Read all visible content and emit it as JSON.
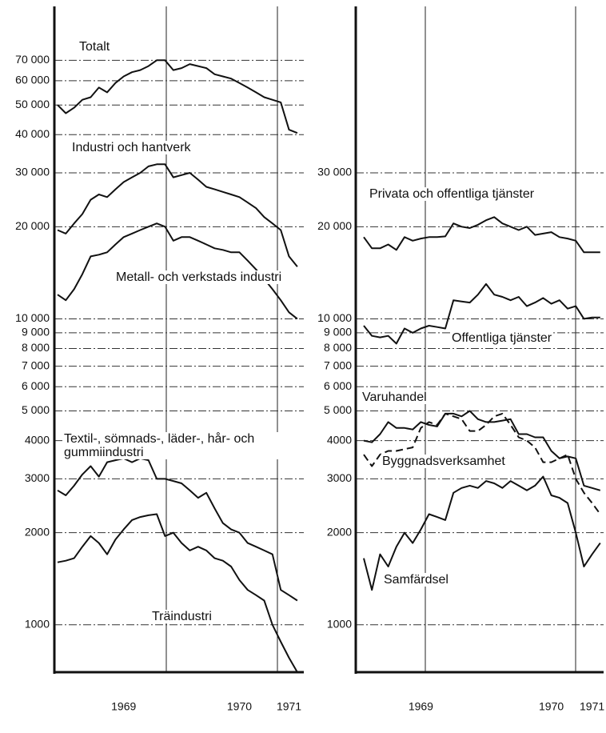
{
  "chart_data": [
    {
      "type": "line",
      "log": true,
      "grid": true,
      "categories": [
        null,
        null,
        null,
        null,
        null,
        null,
        null,
        null,
        "1969",
        null,
        null,
        null,
        null,
        null,
        null,
        null,
        null,
        null,
        null,
        null,
        null,
        null,
        "1970",
        null,
        null,
        null,
        null,
        null,
        "1971",
        null
      ],
      "ylim": [
        700,
        105000
      ],
      "yticks": [
        {
          "value": 70000,
          "label": "70 000"
        },
        {
          "value": 60000,
          "label": "60 000"
        },
        {
          "value": 50000,
          "label": "50 000"
        },
        {
          "value": 40000,
          "label": "40 000"
        },
        {
          "value": 30000,
          "label": "30 000"
        },
        {
          "value": 20000,
          "label": "20 000"
        },
        {
          "value": 10000,
          "label": "10 000"
        },
        {
          "value": 9000,
          "label": "9 000"
        },
        {
          "value": 8000,
          "label": "8 000"
        },
        {
          "value": 7000,
          "label": "7 000"
        },
        {
          "value": 6000,
          "label": "6 000"
        },
        {
          "value": 5000,
          "label": "5 000"
        },
        4000,
        3000,
        2000,
        1000
      ],
      "series": [
        {
          "name": "Totalt",
          "color": "#111111",
          "values": [
            50000,
            47000,
            49000,
            52000,
            53000,
            57000,
            55000,
            59000,
            62000,
            64000,
            65000,
            67000,
            70000,
            70000,
            65000,
            66000,
            68000,
            67000,
            66000,
            63000,
            62000,
            61000,
            59000,
            57000,
            55000,
            53000,
            52000,
            51000,
            41500,
            40500
          ]
        },
        {
          "name": "Industri och hantverk",
          "color": "#111111",
          "values": [
            19500,
            19000,
            20500,
            22000,
            24500,
            25500,
            25000,
            26500,
            28000,
            29000,
            30000,
            31500,
            32000,
            32000,
            29000,
            29500,
            30000,
            28500,
            27000,
            26500,
            26000,
            25500,
            25000,
            24000,
            23000,
            21500,
            20500,
            19500,
            16000,
            14800
          ]
        },
        {
          "name": "Metall- och verkstads industri",
          "color": "#111111",
          "values": [
            12000,
            11500,
            12500,
            14000,
            16000,
            16200,
            16500,
            17500,
            18500,
            19000,
            19500,
            20000,
            20500,
            20000,
            18000,
            18500,
            18500,
            18000,
            17500,
            17000,
            16800,
            16500,
            16500,
            15500,
            14500,
            13500,
            12500,
            11500,
            10500,
            10000
          ]
        },
        {
          "name": "Textil-, sömnads-, läder-, hår- och gummiindustri",
          "color": "#111111",
          "values": [
            2750,
            2650,
            2850,
            3100,
            3300,
            3050,
            3400,
            3450,
            3500,
            3400,
            3500,
            3450,
            3000,
            3000,
            2950,
            2900,
            2750,
            2600,
            2700,
            2400,
            2150,
            2050,
            2000,
            1850,
            1800,
            1750,
            1700,
            1300,
            1250,
            1200
          ]
        },
        {
          "name": "Träindustri",
          "color": "#111111",
          "values": [
            1600,
            1620,
            1650,
            1800,
            1950,
            1850,
            1700,
            1900,
            2050,
            2200,
            2250,
            2280,
            2300,
            1950,
            2000,
            1850,
            1750,
            1800,
            1750,
            1650,
            1620,
            1550,
            1400,
            1300,
            1250,
            1200,
            1000,
            880,
            780,
            700
          ]
        }
      ]
    },
    {
      "type": "line",
      "log": true,
      "grid": true,
      "categories": [
        null,
        null,
        null,
        null,
        null,
        null,
        null,
        "1969",
        null,
        null,
        null,
        null,
        null,
        null,
        null,
        null,
        null,
        null,
        null,
        null,
        null,
        null,
        null,
        "1970",
        null,
        null,
        null,
        null,
        "1971",
        null
      ],
      "ylim": [
        700,
        105000
      ],
      "yticks": [
        {
          "value": 30000,
          "label": "30 000"
        },
        {
          "value": 20000,
          "label": "20 000"
        },
        {
          "value": 10000,
          "label": "10 000"
        },
        {
          "value": 9000,
          "label": "9 000"
        },
        {
          "value": 8000,
          "label": "8 000"
        },
        {
          "value": 7000,
          "label": "7 000"
        },
        {
          "value": 6000,
          "label": "6 000"
        },
        {
          "value": 5000,
          "label": "5 000"
        },
        4000,
        3000,
        2000,
        1000
      ],
      "series": [
        {
          "name": "Privata och offentliga tjänster",
          "color": "#111111",
          "values": [
            18500,
            17000,
            17000,
            17500,
            16800,
            18500,
            18000,
            18300,
            18500,
            18500,
            18600,
            20500,
            20000,
            19800,
            20300,
            21000,
            21500,
            20500,
            20000,
            19500,
            20000,
            18800,
            19000,
            19200,
            18500,
            18300,
            18000,
            16500,
            16500,
            16500
          ]
        },
        {
          "name": "Offentliga tjänster",
          "color": "#111111",
          "values": [
            9500,
            8800,
            8700,
            8800,
            8300,
            9300,
            9000,
            9300,
            9500,
            9400,
            9300,
            11500,
            11400,
            11300,
            12000,
            13000,
            12000,
            11800,
            11500,
            11800,
            11000,
            11300,
            11700,
            11200,
            11500,
            10800,
            11000,
            10000,
            10100,
            10100
          ]
        },
        {
          "name": "Varuhandel",
          "color": "#111111",
          "values": [
            4000,
            3950,
            4200,
            4600,
            4400,
            4400,
            4350,
            4600,
            4500,
            4450,
            4900,
            4900,
            4800,
            5000,
            4700,
            4600,
            4600,
            4650,
            4700,
            4200,
            4200,
            4100,
            4100,
            3700,
            3500,
            3550,
            3500,
            2850,
            2800,
            2750
          ]
        },
        {
          "name": "Byggnadsverksamhet",
          "color": "#111111",
          "linestyle": "dashed",
          "values": [
            3600,
            3300,
            3600,
            3700,
            3700,
            3750,
            3800,
            4400,
            4600,
            4500,
            4900,
            4800,
            4700,
            4300,
            4300,
            4500,
            4800,
            4900,
            4500,
            4100,
            4000,
            3800,
            3400,
            3400,
            3500,
            3600,
            3000,
            2700,
            2500,
            2300
          ]
        },
        {
          "name": "Samfärdsel",
          "color": "#111111",
          "values": [
            1650,
            1300,
            1700,
            1550,
            1800,
            2000,
            1850,
            2050,
            2300,
            2250,
            2200,
            2700,
            2800,
            2850,
            2800,
            2950,
            2900,
            2800,
            2950,
            2850,
            2750,
            2850,
            3050,
            2650,
            2600,
            2500,
            2000,
            1550,
            1700,
            1850
          ]
        }
      ]
    }
  ]
}
